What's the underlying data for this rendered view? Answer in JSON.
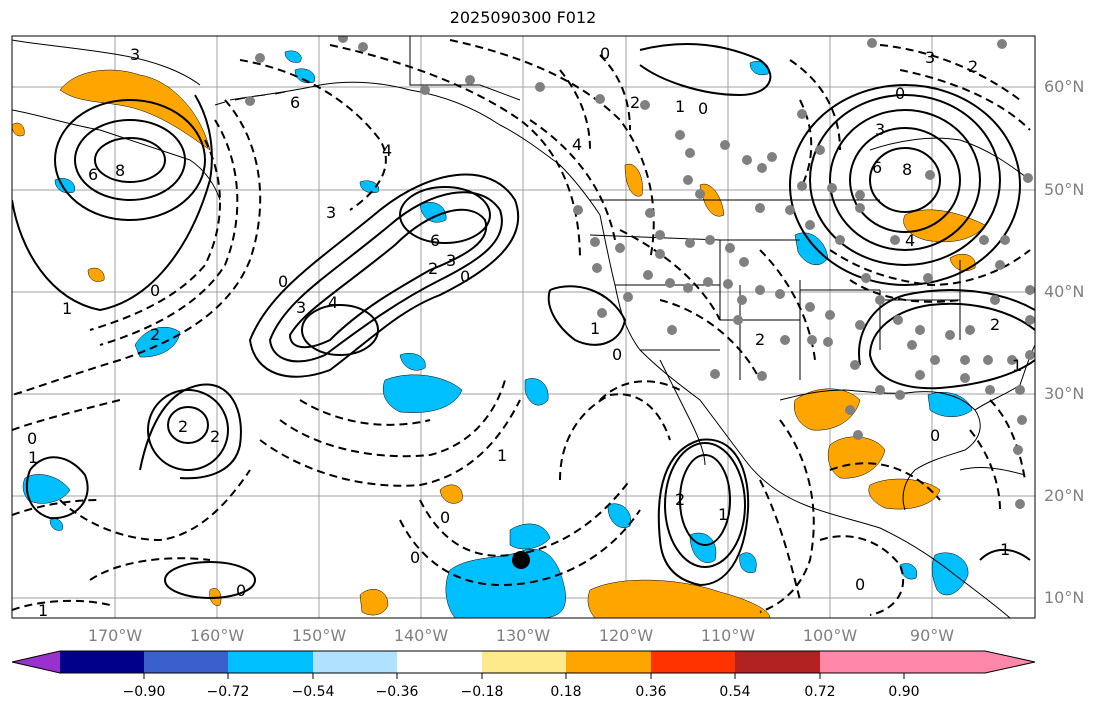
{
  "title": "2025090300 F012",
  "latitude_labels": [
    "60°N",
    "50°N",
    "40°N",
    "30°N",
    "20°N",
    "10°N"
  ],
  "longitude_labels": [
    "170°W",
    "160°W",
    "150°W",
    "140°W",
    "130°W",
    "120°W",
    "110°W",
    "100°W",
    "90°W"
  ],
  "contour_labels": [
    "0",
    "1",
    "2",
    "3",
    "4",
    "6",
    "8"
  ],
  "colorbar": {
    "ticks": [
      "−0.90",
      "−0.72",
      "−0.54",
      "−0.36",
      "−0.18",
      "0.18",
      "0.36",
      "0.54",
      "0.72",
      "0.90"
    ],
    "colors": [
      "#9932cc",
      "#00008b",
      "#3a5fcd",
      "#00bfff",
      "#b0e2ff",
      "#ffffff",
      "#fee98b",
      "#ffa500",
      "#ff3300",
      "#b22222",
      "#ff88aa"
    ]
  },
  "colors": {
    "contour": "#000000",
    "grid": "#a0a0a0",
    "dots": "#808080",
    "positive_fill": "#ffa500",
    "negative_fill": "#00bfff"
  }
}
